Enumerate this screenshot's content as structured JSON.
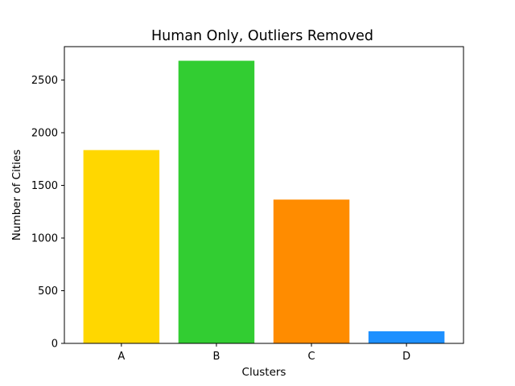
{
  "chart_data": {
    "type": "bar",
    "title": "Human Only, Outliers Removed",
    "xlabel": "Clusters",
    "ylabel": "Number of Cities",
    "categories": [
      "A",
      "B",
      "C",
      "D"
    ],
    "values": [
      1835,
      2683,
      1365,
      115
    ],
    "colors": [
      "#FFD700",
      "#32CD32",
      "#FF8C00",
      "#1E90FF"
    ],
    "ylim": [
      0,
      2817
    ],
    "yticks": [
      0,
      500,
      1000,
      1500,
      2000,
      2500
    ],
    "grid": false,
    "legend": false
  }
}
